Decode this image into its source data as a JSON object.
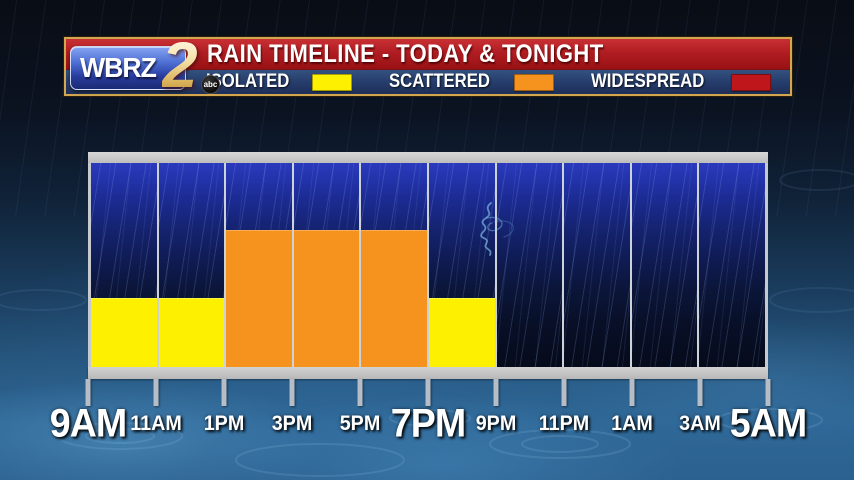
{
  "station": {
    "name": "WBRZ",
    "channel": "2",
    "network": "abc"
  },
  "header": {
    "title": "RAIN TIMELINE - TODAY & TONIGHT"
  },
  "legend": {
    "items": [
      {
        "label": "ISOLATED",
        "color": "#fdf000"
      },
      {
        "label": "SCATTERED",
        "color": "#f6921e"
      },
      {
        "label": "WIDESPREAD",
        "color": "#bf161c"
      }
    ]
  },
  "chart_data": {
    "type": "bar",
    "title": "RAIN TIMELINE - TODAY & TONIGHT",
    "categories": [
      "9AM-11AM",
      "11AM-1PM",
      "1PM-3PM",
      "3PM-5PM",
      "5PM-7PM",
      "7PM-9PM",
      "9PM-11PM",
      "11PM-1AM",
      "1AM-3AM",
      "3AM-5AM"
    ],
    "values": [
      "ISOLATED",
      "ISOLATED",
      "SCATTERED",
      "SCATTERED",
      "SCATTERED",
      "ISOLATED",
      "NONE",
      "NONE",
      "NONE",
      "NONE"
    ],
    "level_height_pct": {
      "NONE": 0,
      "ISOLATED": 34,
      "SCATTERED": 67,
      "WIDESPREAD": 100
    },
    "colors": {
      "ISOLATED": "#fdf000",
      "SCATTERED": "#f6921e",
      "WIDESPREAD": "#bf161c",
      "NONE": "transparent"
    },
    "x_tick_labels": [
      "9AM",
      "11AM",
      "1PM",
      "3PM",
      "5PM",
      "7PM",
      "9PM",
      "11PM",
      "1AM",
      "3AM",
      "5AM"
    ],
    "x_major_ticks": [
      "9AM",
      "7PM",
      "5AM"
    ],
    "legend_entries": [
      "ISOLATED",
      "SCATTERED",
      "WIDESPREAD"
    ],
    "legend_position": "top",
    "grid": false,
    "ylim": [
      0,
      100
    ]
  }
}
